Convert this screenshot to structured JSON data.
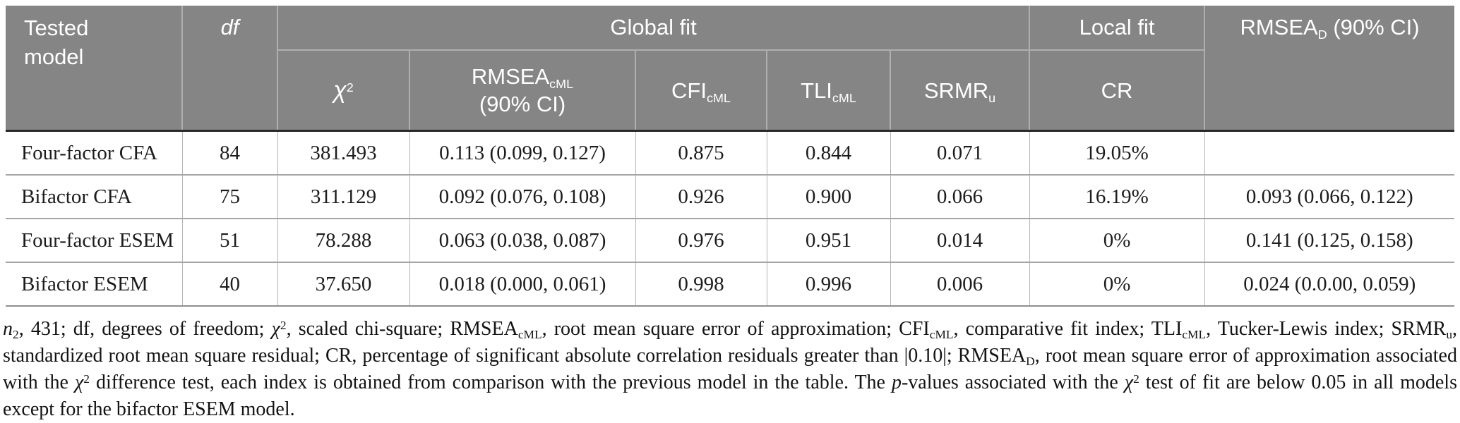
{
  "colors": {
    "header_bg": "#858585",
    "header_text": "#ffffff",
    "body_text": "#1c1c1c"
  },
  "table": {
    "header": {
      "tested_model": "Tested model",
      "df": "df",
      "global_fit": "Global fit",
      "local_fit": "Local fit",
      "chi": {
        "symbol": "χ",
        "sup": "2"
      },
      "rmsea_cml": {
        "base": "RMSEA",
        "sub": "cML",
        "ci": "(90% CI)"
      },
      "cfi": {
        "base": "CFI",
        "sub": "cML"
      },
      "tli": {
        "base": "TLI",
        "sub": "cML"
      },
      "srmr": {
        "base": "SRMR",
        "sub": "u"
      },
      "cr": "CR",
      "rmsea_d": {
        "base": "RMSEA",
        "sub": "D",
        "rest": " (90% CI)"
      }
    },
    "rows": [
      {
        "model": "Four-factor CFA",
        "df": "84",
        "chi2": "381.493",
        "rmsea_cml": "0.113 (0.099, 0.127)",
        "cfi": "0.875",
        "tli": "0.844",
        "srmr": "0.071",
        "cr": "19.05%",
        "rmsea_d": ""
      },
      {
        "model": "Bifactor CFA",
        "df": "75",
        "chi2": "311.129",
        "rmsea_cml": "0.092 (0.076, 0.108)",
        "cfi": "0.926",
        "tli": "0.900",
        "srmr": "0.066",
        "cr": "16.19%",
        "rmsea_d": "0.093 (0.066, 0.122)"
      },
      {
        "model": "Four-factor ESEM",
        "df": "51",
        "chi2": "78.288",
        "rmsea_cml": "0.063 (0.038, 0.087)",
        "cfi": "0.976",
        "tli": "0.951",
        "srmr": "0.014",
        "cr": "0%",
        "rmsea_d": "0.141 (0.125, 0.158)"
      },
      {
        "model": "Bifactor ESEM",
        "df": "40",
        "chi2": "37.650",
        "rmsea_cml": "0.018 (0.000, 0.061)",
        "cfi": "0.998",
        "tli": "0.996",
        "srmr": "0.006",
        "cr": "0%",
        "rmsea_d": "0.024 (0.0.00, 0.059)"
      }
    ]
  },
  "footnote": {
    "segments": [
      {
        "t": "n",
        "i": true
      },
      {
        "t": "2",
        "sub": true
      },
      {
        "t": ", 431; df, degrees of freedom; "
      },
      {
        "t": "χ",
        "i": true
      },
      {
        "t": "2",
        "sup": true
      },
      {
        "t": ", scaled chi-square; RMSEA"
      },
      {
        "t": "cML",
        "sub": true
      },
      {
        "t": ", root mean square error of approximation; CFI"
      },
      {
        "t": "cML",
        "sub": true
      },
      {
        "t": ", comparative fit index; TLI"
      },
      {
        "t": "cML",
        "sub": true
      },
      {
        "t": ", Tucker-Lewis index; SRMR"
      },
      {
        "t": "u",
        "sub": true
      },
      {
        "t": ", standardized root mean square residual; CR, percentage of significant absolute correlation residuals greater than |0.10|; RMSEA"
      },
      {
        "t": "D",
        "sub": true
      },
      {
        "t": ", root mean square error of approximation associated with the "
      },
      {
        "t": "χ",
        "i": true
      },
      {
        "t": "2",
        "sup": true
      },
      {
        "t": " difference test, each index is obtained from comparison with the previous model in the table. The "
      },
      {
        "t": "p",
        "i": true
      },
      {
        "t": "-values associated with the "
      },
      {
        "t": "χ",
        "i": true
      },
      {
        "t": "2",
        "sup": true
      },
      {
        "t": " test of fit are below 0.05 in all models except for the bifactor ESEM model."
      }
    ]
  }
}
